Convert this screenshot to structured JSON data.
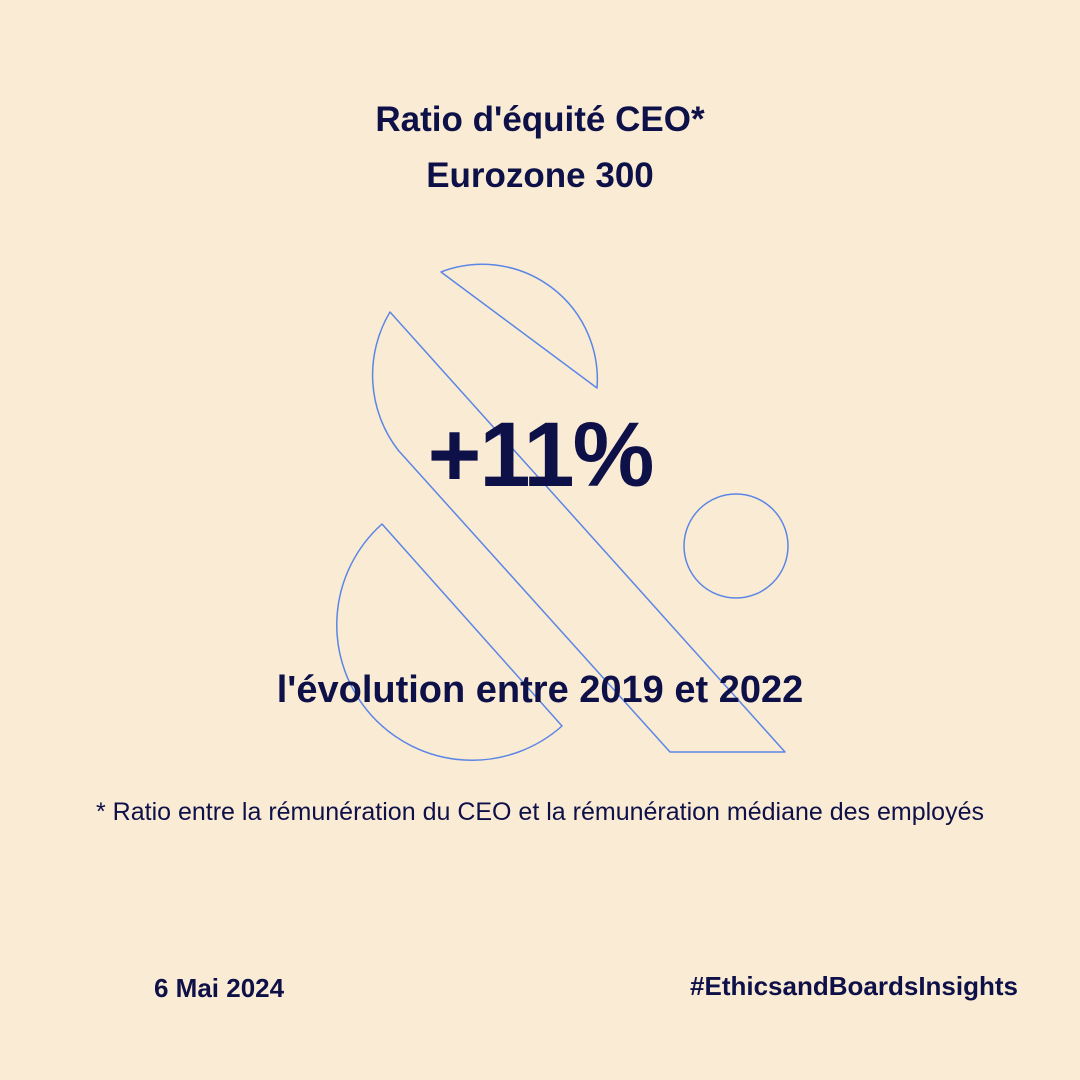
{
  "header": {
    "title_line1": "Ratio d'équité CEO*",
    "title_line2": "Eurozone 300"
  },
  "main": {
    "figure": "+11%",
    "caption": "l'évolution entre 2019 et 2022"
  },
  "footnote": {
    "text": "* Ratio entre la rémunération du CEO et la rémunération médiane des employés"
  },
  "footer": {
    "date": "6 Mai 2024",
    "hashtag": "#EthicsandBoardsInsights"
  },
  "colors": {
    "background": "#FAEBD5",
    "text": "#0E1048",
    "outline": "#5B86E5"
  },
  "icons": {
    "decoration": "ampersand-outline-icon"
  }
}
